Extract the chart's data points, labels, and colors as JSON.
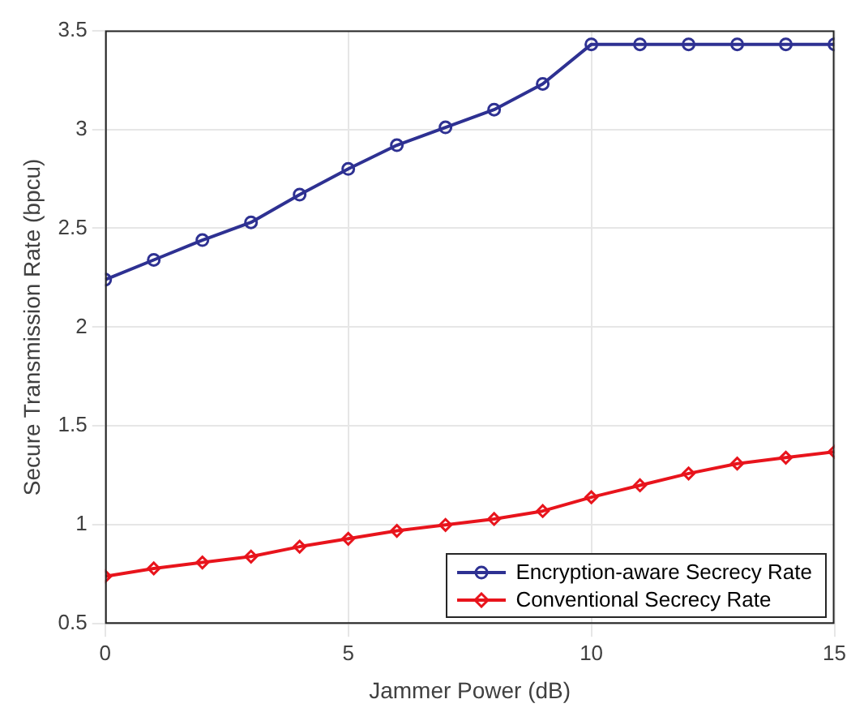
{
  "chart_data": {
    "type": "line",
    "xlabel": "Jammer Power (dB)",
    "ylabel": "Secure Transmission Rate (bpcu)",
    "x": [
      0,
      1,
      2,
      3,
      4,
      5,
      6,
      7,
      8,
      9,
      10,
      11,
      12,
      13,
      14,
      15
    ],
    "series": [
      {
        "name": "Encryption-aware Secrecy Rate",
        "color": "#2e3192",
        "marker": "circle",
        "values": [
          2.24,
          2.34,
          2.44,
          2.53,
          2.67,
          2.8,
          2.92,
          3.01,
          3.1,
          3.23,
          3.43,
          3.43,
          3.43,
          3.43,
          3.43,
          3.43
        ]
      },
      {
        "name": "Conventional Secrecy Rate",
        "color": "#e8141c",
        "marker": "diamond",
        "values": [
          0.74,
          0.78,
          0.81,
          0.84,
          0.89,
          0.93,
          0.97,
          1.0,
          1.03,
          1.07,
          1.14,
          1.2,
          1.26,
          1.31,
          1.34,
          1.37
        ]
      }
    ],
    "xlim": [
      0,
      15
    ],
    "xticks": [
      0,
      5,
      10,
      15
    ],
    "ylim": [
      0.5,
      3.5
    ],
    "yticks": [
      0.5,
      1,
      1.5,
      2,
      2.5,
      3,
      3.5
    ],
    "grid": true,
    "legend": "bottom right",
    "line_style": "solid"
  }
}
